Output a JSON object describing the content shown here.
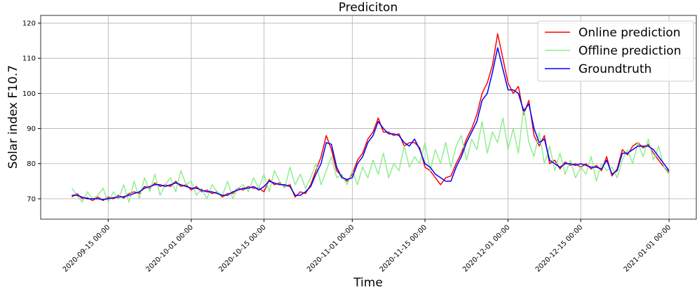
{
  "chart_data": {
    "type": "line",
    "title": "Prediciton",
    "xlabel": "Time",
    "ylabel": "Solar index F10.7",
    "x": [
      "2020-09-08 00:00",
      "2020-09-09 00:00",
      "2020-09-10 00:00",
      "2020-09-11 00:00",
      "2020-09-12 00:00",
      "2020-09-13 00:00",
      "2020-09-14 00:00",
      "2020-09-15 00:00",
      "2020-09-16 00:00",
      "2020-09-17 00:00",
      "2020-09-18 00:00",
      "2020-09-19 00:00",
      "2020-09-20 00:00",
      "2020-09-21 00:00",
      "2020-09-22 00:00",
      "2020-09-23 00:00",
      "2020-09-24 00:00",
      "2020-09-25 00:00",
      "2020-09-26 00:00",
      "2020-09-27 00:00",
      "2020-09-28 00:00",
      "2020-09-29 00:00",
      "2020-09-30 00:00",
      "2020-10-01 00:00",
      "2020-10-02 00:00",
      "2020-10-03 00:00",
      "2020-10-04 00:00",
      "2020-10-05 00:00",
      "2020-10-06 00:00",
      "2020-10-07 00:00",
      "2020-10-08 00:00",
      "2020-10-09 00:00",
      "2020-10-10 00:00",
      "2020-10-11 00:00",
      "2020-10-12 00:00",
      "2020-10-13 00:00",
      "2020-10-14 00:00",
      "2020-10-15 00:00",
      "2020-10-16 00:00",
      "2020-10-17 00:00",
      "2020-10-18 00:00",
      "2020-10-19 00:00",
      "2020-10-20 00:00",
      "2020-10-21 00:00",
      "2020-10-22 00:00",
      "2020-10-23 00:00",
      "2020-10-24 00:00",
      "2020-10-25 00:00",
      "2020-10-26 00:00",
      "2020-10-27 00:00",
      "2020-10-28 00:00",
      "2020-10-29 00:00",
      "2020-10-30 00:00",
      "2020-10-31 00:00",
      "2020-11-01 00:00",
      "2020-11-02 00:00",
      "2020-11-03 00:00",
      "2020-11-04 00:00",
      "2020-11-05 00:00",
      "2020-11-06 00:00",
      "2020-11-07 00:00",
      "2020-11-08 00:00",
      "2020-11-09 00:00",
      "2020-11-10 00:00",
      "2020-11-11 00:00",
      "2020-11-12 00:00",
      "2020-11-13 00:00",
      "2020-11-14 00:00",
      "2020-11-15 00:00",
      "2020-11-16 00:00",
      "2020-11-17 00:00",
      "2020-11-18 00:00",
      "2020-11-19 00:00",
      "2020-11-20 00:00",
      "2020-11-21 00:00",
      "2020-11-22 00:00",
      "2020-11-23 00:00",
      "2020-11-24 00:00",
      "2020-11-25 00:00",
      "2020-11-26 00:00",
      "2020-11-27 00:00",
      "2020-11-28 00:00",
      "2020-11-29 00:00",
      "2020-11-30 00:00",
      "2020-12-01 00:00",
      "2020-12-02 00:00",
      "2020-12-03 00:00",
      "2020-12-04 00:00",
      "2020-12-05 00:00",
      "2020-12-06 00:00",
      "2020-12-07 00:00",
      "2020-12-08 00:00",
      "2020-12-09 00:00",
      "2020-12-10 00:00",
      "2020-12-11 00:00",
      "2020-12-12 00:00",
      "2020-12-13 00:00",
      "2020-12-14 00:00",
      "2020-12-15 00:00",
      "2020-12-16 00:00",
      "2020-12-17 00:00",
      "2020-12-18 00:00",
      "2020-12-19 00:00",
      "2020-12-20 00:00",
      "2020-12-21 00:00",
      "2020-12-22 00:00",
      "2020-12-23 00:00",
      "2020-12-24 00:00",
      "2020-12-25 00:00",
      "2020-12-26 00:00",
      "2020-12-27 00:00",
      "2020-12-28 00:00",
      "2020-12-29 00:00",
      "2020-12-30 00:00",
      "2020-12-31 00:00",
      "2021-01-01 00:00"
    ],
    "series": [
      {
        "name": "Online prediction",
        "color": "#ff0000",
        "values": [
          70.5,
          71.5,
          70,
          70.3,
          69.5,
          70.5,
          69.5,
          70.5,
          70,
          71,
          70.2,
          71.5,
          72,
          71.5,
          73.5,
          73,
          74.5,
          73.5,
          74,
          73.5,
          75,
          73.5,
          74,
          72.5,
          73.5,
          72,
          72.5,
          71.5,
          72,
          70.5,
          71.5,
          71.5,
          73,
          72.5,
          73.5,
          73,
          73,
          72,
          75.5,
          74,
          74.5,
          73.5,
          74,
          70.5,
          72,
          71.5,
          74,
          78,
          82,
          88,
          84,
          78,
          76.5,
          75,
          77,
          81,
          83,
          87,
          89,
          93,
          89,
          89,
          88,
          88.5,
          85,
          86,
          86,
          84.5,
          79,
          78,
          76,
          74,
          76,
          76.5,
          80,
          83,
          87,
          90,
          94,
          100,
          103,
          108,
          117,
          110,
          103,
          100,
          102,
          94,
          98,
          88,
          85,
          88,
          80,
          81,
          78.5,
          80.5,
          79.5,
          80,
          79,
          80,
          78.5,
          79.5,
          78,
          82,
          76.5,
          78.5,
          84,
          82.5,
          85,
          86,
          84.5,
          85.5,
          83,
          81,
          79,
          77.5
        ]
      },
      {
        "name": "Offline prediction",
        "color": "#90ee90",
        "values": [
          73,
          71,
          69,
          72,
          70,
          71,
          73,
          69,
          72,
          70,
          74,
          69,
          75,
          70,
          76,
          72,
          77,
          71,
          74,
          76,
          72,
          78,
          74,
          75,
          71,
          73,
          70,
          74,
          72,
          71,
          75,
          70,
          73,
          74,
          72,
          76,
          73,
          77,
          72,
          78,
          75,
          73,
          79,
          74,
          77,
          73,
          76,
          80,
          74,
          78,
          82,
          76,
          77,
          74,
          78,
          74,
          79,
          76,
          81,
          77,
          83,
          76,
          80,
          78,
          85,
          79,
          82,
          80,
          86,
          78,
          84,
          80,
          86,
          79,
          85,
          88,
          81,
          87,
          84,
          92,
          83,
          89,
          86,
          93,
          84,
          90,
          83,
          96,
          86,
          82,
          89,
          80,
          85,
          78,
          83,
          77,
          81,
          76,
          79,
          77,
          82,
          75,
          80,
          78,
          79,
          76,
          81,
          84,
          80,
          86,
          82,
          87,
          81,
          85,
          79,
          77
        ]
      },
      {
        "name": "Groundtruth",
        "color": "#0000ff",
        "values": [
          71,
          71,
          70.5,
          70,
          70,
          70,
          69.8,
          70,
          70.3,
          70.5,
          70.6,
          71,
          71.5,
          72,
          73,
          73.5,
          74,
          74,
          73.5,
          74,
          74.5,
          74,
          73.5,
          73,
          73,
          72.5,
          72,
          72,
          71.5,
          71,
          71,
          72,
          72.5,
          73,
          73,
          73.5,
          72.5,
          73.5,
          75,
          74.5,
          74,
          74,
          73.5,
          71,
          71,
          72,
          73.5,
          77,
          80,
          86,
          85.5,
          79,
          76,
          75.5,
          76,
          80,
          82,
          86,
          88,
          92,
          90,
          88.5,
          88.5,
          88,
          86,
          85,
          87,
          84,
          80,
          79,
          77,
          76,
          75,
          75,
          79,
          82,
          86,
          89,
          92,
          98,
          100,
          106,
          113,
          107,
          101,
          101,
          100,
          95,
          97,
          90,
          86,
          87,
          81,
          80,
          79,
          80,
          80,
          79.5,
          80,
          79.5,
          79,
          79,
          78.5,
          81,
          77,
          78,
          83,
          83,
          84,
          85,
          85,
          85,
          84,
          82,
          80,
          78
        ]
      }
    ],
    "xlim": [
      "2020-09-02 00:00",
      "2021-01-06 06:00"
    ],
    "xticks": [
      "2020-09-15 00:00",
      "2020-10-01 00:00",
      "2020-10-15 00:00",
      "2020-11-01 00:00",
      "2020-11-15 00:00",
      "2020-12-01 00:00",
      "2020-12-15 00:00",
      "2021-01-01 00:00"
    ],
    "ylim": [
      64.2,
      122.2
    ],
    "yticks": [
      70,
      80,
      90,
      100,
      110,
      120
    ],
    "grid": true,
    "legend": "upper right"
  }
}
